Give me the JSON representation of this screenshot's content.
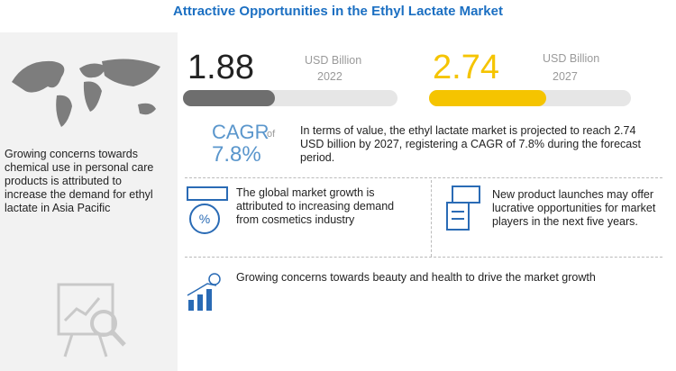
{
  "header": {
    "title": "Attractive Opportunities in the Ethyl Lactate Market"
  },
  "left_panel": {
    "text": "Growing concerns towards chemical use in personal care products is attributed to increase the demand for ethyl lactate in Asia Pacific"
  },
  "stats": [
    {
      "value": "1.88",
      "unit": "USD Billion",
      "year": "2022"
    },
    {
      "value": "2.74",
      "unit": "USD Billion",
      "year": "2027"
    }
  ],
  "cagr": {
    "label": "CAGR",
    "of": "of",
    "value": "7.8%",
    "description": "In terms of value, the ethyl lactate market is projected to reach 2.74 USD billion by 2027, registering a CAGR of 7.8% during the forecast period."
  },
  "insights": [
    "The global market growth is attributed to increasing demand from cosmetics industry",
    "New product launches may offer lucrative opportunities for market players in the next five years.",
    "Growing concerns towards beauty and health to drive the market growth"
  ]
}
